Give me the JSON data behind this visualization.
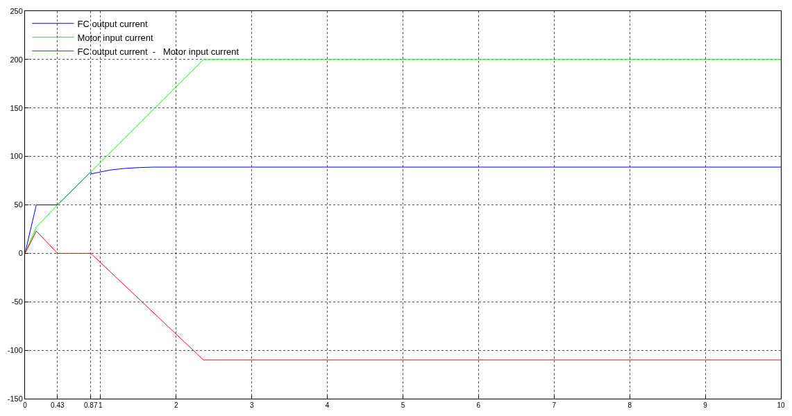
{
  "chart_data": {
    "type": "line",
    "xlim": [
      0,
      10
    ],
    "ylim": [
      -150,
      250
    ],
    "xticks": [
      0,
      0.43,
      0.87,
      1,
      2,
      3,
      4,
      5,
      6,
      7,
      8,
      9,
      10
    ],
    "yticks": [
      -150,
      -100,
      -50,
      0,
      50,
      100,
      150,
      200,
      250
    ],
    "grid": true,
    "legend": "top left",
    "marker": "none",
    "line_style": "solid",
    "series": [
      {
        "name": "FC output current",
        "color": "#0000ff",
        "x": [
          0,
          0.15,
          0.43,
          0.87,
          0.88,
          1.0,
          1.13,
          1.3,
          1.51,
          1.7,
          10
        ],
        "values": [
          0,
          50,
          50,
          84,
          82,
          84,
          86,
          87.5,
          88.5,
          89,
          89
        ]
      },
      {
        "name": "Motor input current",
        "color": "#00ff00",
        "x": [
          0,
          0.15,
          0.43,
          0.87,
          2.36,
          10
        ],
        "values": [
          0,
          27,
          50,
          84,
          200,
          200
        ]
      },
      {
        "name": "FC output current  -   Motor input current",
        "color": "#ff0000",
        "x": [
          0,
          0.15,
          0.43,
          0.87,
          2.36,
          10
        ],
        "values": [
          0,
          23,
          0,
          0,
          -110,
          -110
        ]
      }
    ]
  }
}
